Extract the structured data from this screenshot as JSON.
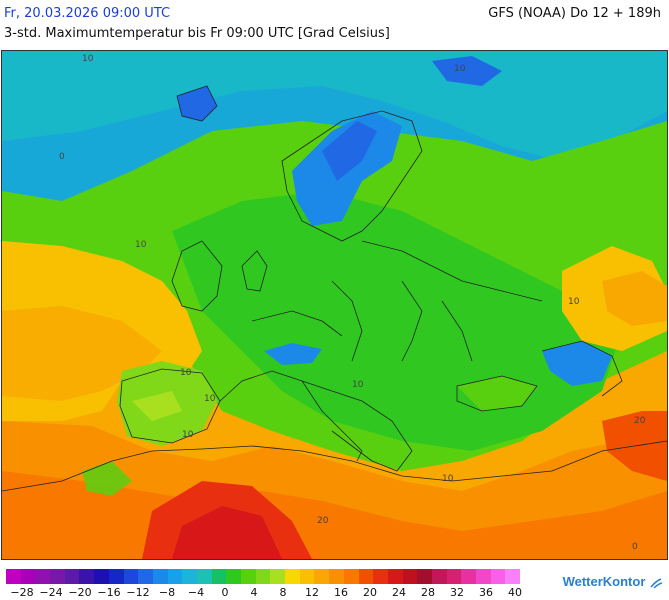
{
  "header": {
    "date": "Fr, 20.03.2026 09:00 UTC",
    "model": "GFS (NOAA) Do 12 + 189h",
    "description": "3-std. Maximumtemperatur bis Fr 09:00 UTC [Grad Celsius]"
  },
  "map": {
    "contour_labels": [
      "10",
      "10",
      "0",
      "10",
      "10",
      "10",
      "10",
      "10",
      "20",
      "10",
      "20",
      "10",
      "0"
    ]
  },
  "legend": {
    "labels": [
      "−28",
      "−24",
      "−20",
      "−16",
      "−12",
      "−8",
      "−4",
      "0",
      "4",
      "8",
      "12",
      "16",
      "20",
      "24",
      "28",
      "32",
      "36",
      "40"
    ],
    "colors": [
      "#c000c0",
      "#a800b8",
      "#9010b0",
      "#7818a8",
      "#5c1aa8",
      "#3a14a8",
      "#1c10b0",
      "#1428c8",
      "#1c48dc",
      "#2068e4",
      "#1c88e8",
      "#18a0e8",
      "#1cb4d8",
      "#1cc0b4",
      "#18c064",
      "#30c820",
      "#58d010",
      "#80d818",
      "#a8e020",
      "#f8d800",
      "#f8c000",
      "#f8a800",
      "#f89000",
      "#f87800",
      "#f05000",
      "#e83010",
      "#d81818",
      "#c01020",
      "#a0102c",
      "#c01858",
      "#d82070",
      "#e830a0",
      "#f048c8",
      "#f860e8",
      "#f880f8"
    ]
  },
  "logo": {
    "text": "WetterKontor"
  }
}
